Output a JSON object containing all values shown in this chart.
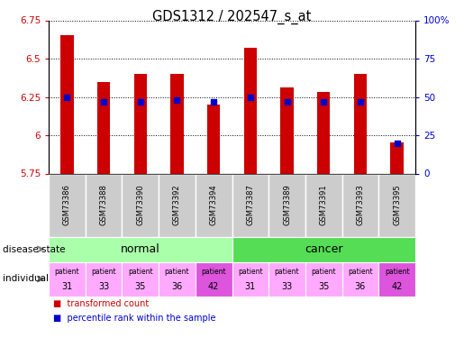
{
  "title": "GDS1312 / 202547_s_at",
  "samples": [
    "GSM73386",
    "GSM73388",
    "GSM73390",
    "GSM73392",
    "GSM73394",
    "GSM73387",
    "GSM73389",
    "GSM73391",
    "GSM73393",
    "GSM73395"
  ],
  "transformed_counts": [
    6.65,
    6.35,
    6.4,
    6.4,
    6.2,
    6.57,
    6.31,
    6.28,
    6.4,
    5.95
  ],
  "percentile_ranks": [
    50,
    47,
    47,
    48,
    47,
    50,
    47,
    47,
    47,
    20
  ],
  "ylim_left": [
    5.75,
    6.75
  ],
  "ylim_right": [
    0,
    100
  ],
  "yticks_left": [
    5.75,
    6.0,
    6.25,
    6.5,
    6.75
  ],
  "yticks_right": [
    0,
    25,
    50,
    75,
    100
  ],
  "ytick_labels_left": [
    "5.75",
    "6",
    "6.25",
    "6.5",
    "6.75"
  ],
  "ytick_labels_right": [
    "0",
    "25",
    "50",
    "75",
    "100%"
  ],
  "bar_color": "#cc0000",
  "dot_color": "#0000cc",
  "bar_bottom": 5.75,
  "individuals": [
    "31",
    "33",
    "35",
    "36",
    "42",
    "31",
    "33",
    "35",
    "36",
    "42"
  ],
  "individual_colors": [
    "#ffaaff",
    "#ffaaff",
    "#ffaaff",
    "#ffaaff",
    "#dd55dd",
    "#ffaaff",
    "#ffaaff",
    "#ffaaff",
    "#ffaaff",
    "#dd55dd"
  ],
  "normal_color": "#aaffaa",
  "cancer_color": "#55dd55",
  "sample_bg_color": "#cccccc",
  "left_label_color": "#cc0000",
  "right_label_color": "#0000cc"
}
